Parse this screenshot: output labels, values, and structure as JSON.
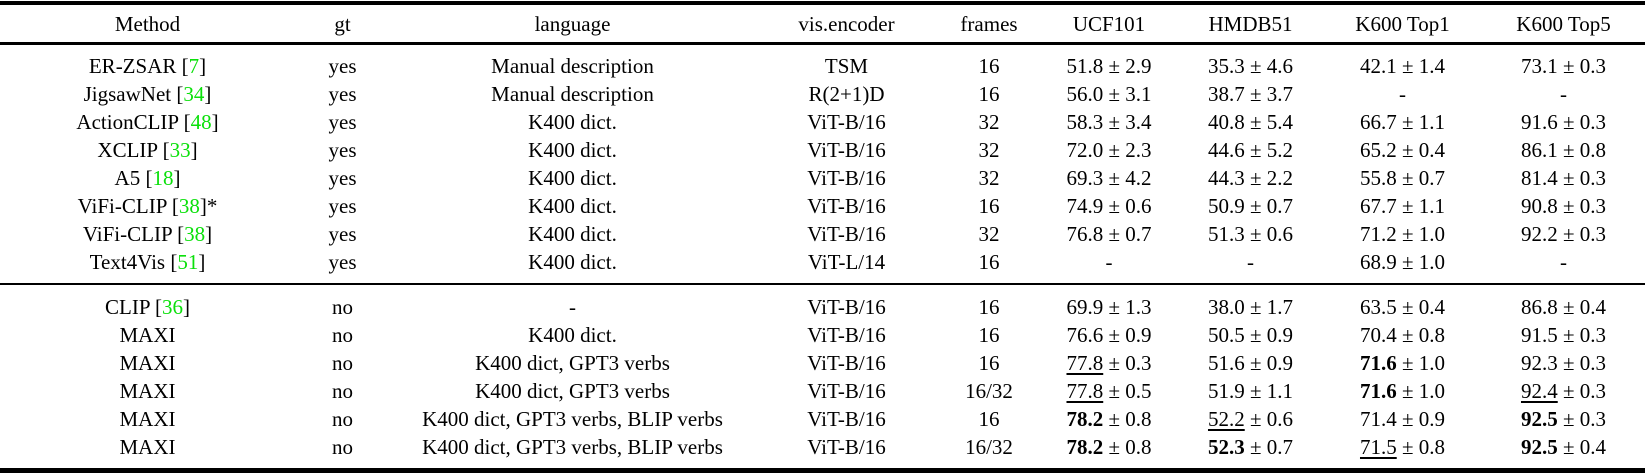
{
  "meta": {
    "citation_color": "#0be00b",
    "text_color": "#000000",
    "plus_minus": "±"
  },
  "table": {
    "headers": [
      "Method",
      "gt",
      "language",
      "vis.encoder",
      "frames",
      "UCF101",
      "HMDB51",
      "K600 Top1",
      "K600 Top5"
    ],
    "groups": [
      {
        "rows": [
          {
            "method": {
              "name": "ER-ZSAR",
              "cite": "7",
              "suffix": ""
            },
            "gt": "yes",
            "language": "Manual description",
            "encoder": "TSM",
            "frames": "16",
            "results": [
              {
                "v": "51.8",
                "pm": "2.9",
                "s": "n"
              },
              {
                "v": "35.3",
                "pm": "4.6",
                "s": "n"
              },
              {
                "v": "42.1",
                "pm": "1.4",
                "s": "n"
              },
              {
                "v": "73.1",
                "pm": "0.3",
                "s": "n"
              }
            ]
          },
          {
            "method": {
              "name": "JigsawNet",
              "cite": "34",
              "suffix": ""
            },
            "gt": "yes",
            "language": "Manual description",
            "encoder": "R(2+1)D",
            "frames": "16",
            "results": [
              {
                "v": "56.0",
                "pm": "3.1",
                "s": "n"
              },
              {
                "v": "38.7",
                "pm": "3.7",
                "s": "n"
              },
              {
                "v": "-",
                "pm": null,
                "s": "n"
              },
              {
                "v": "-",
                "pm": null,
                "s": "n"
              }
            ]
          },
          {
            "method": {
              "name": "ActionCLIP",
              "cite": "48",
              "suffix": ""
            },
            "gt": "yes",
            "language": "K400 dict.",
            "encoder": "ViT-B/16",
            "frames": "32",
            "results": [
              {
                "v": "58.3",
                "pm": "3.4",
                "s": "n"
              },
              {
                "v": "40.8",
                "pm": "5.4",
                "s": "n"
              },
              {
                "v": "66.7",
                "pm": "1.1",
                "s": "n"
              },
              {
                "v": "91.6",
                "pm": "0.3",
                "s": "n"
              }
            ]
          },
          {
            "method": {
              "name": "XCLIP",
              "cite": "33",
              "suffix": ""
            },
            "gt": "yes",
            "language": "K400 dict.",
            "encoder": "ViT-B/16",
            "frames": "32",
            "results": [
              {
                "v": "72.0",
                "pm": "2.3",
                "s": "n"
              },
              {
                "v": "44.6",
                "pm": "5.2",
                "s": "n"
              },
              {
                "v": "65.2",
                "pm": "0.4",
                "s": "n"
              },
              {
                "v": "86.1",
                "pm": "0.8",
                "s": "n"
              }
            ]
          },
          {
            "method": {
              "name": "A5",
              "cite": "18",
              "suffix": ""
            },
            "gt": "yes",
            "language": "K400 dict.",
            "encoder": "ViT-B/16",
            "frames": "32",
            "results": [
              {
                "v": "69.3",
                "pm": "4.2",
                "s": "n"
              },
              {
                "v": "44.3",
                "pm": "2.2",
                "s": "n"
              },
              {
                "v": "55.8",
                "pm": "0.7",
                "s": "n"
              },
              {
                "v": "81.4",
                "pm": "0.3",
                "s": "n"
              }
            ]
          },
          {
            "method": {
              "name": "ViFi-CLIP",
              "cite": "38",
              "suffix": "*"
            },
            "gt": "yes",
            "language": "K400 dict.",
            "encoder": "ViT-B/16",
            "frames": "16",
            "results": [
              {
                "v": "74.9",
                "pm": "0.6",
                "s": "n"
              },
              {
                "v": "50.9",
                "pm": "0.7",
                "s": "n"
              },
              {
                "v": "67.7",
                "pm": "1.1",
                "s": "n"
              },
              {
                "v": "90.8",
                "pm": "0.3",
                "s": "n"
              }
            ]
          },
          {
            "method": {
              "name": "ViFi-CLIP",
              "cite": "38",
              "suffix": ""
            },
            "gt": "yes",
            "language": "K400 dict.",
            "encoder": "ViT-B/16",
            "frames": "32",
            "results": [
              {
                "v": "76.8",
                "pm": "0.7",
                "s": "n"
              },
              {
                "v": "51.3",
                "pm": "0.6",
                "s": "n"
              },
              {
                "v": "71.2",
                "pm": "1.0",
                "s": "n"
              },
              {
                "v": "92.2",
                "pm": "0.3",
                "s": "n"
              }
            ]
          },
          {
            "method": {
              "name": "Text4Vis",
              "cite": "51",
              "suffix": ""
            },
            "gt": "yes",
            "language": "K400 dict.",
            "encoder": "ViT-L/14",
            "frames": "16",
            "results": [
              {
                "v": "-",
                "pm": null,
                "s": "n"
              },
              {
                "v": "-",
                "pm": null,
                "s": "n"
              },
              {
                "v": "68.9",
                "pm": "1.0",
                "s": "n"
              },
              {
                "v": "-",
                "pm": null,
                "s": "n"
              }
            ]
          }
        ]
      },
      {
        "rows": [
          {
            "method": {
              "name": "CLIP",
              "cite": "36",
              "suffix": ""
            },
            "gt": "no",
            "language": "-",
            "encoder": "ViT-B/16",
            "frames": "16",
            "results": [
              {
                "v": "69.9",
                "pm": "1.3",
                "s": "n"
              },
              {
                "v": "38.0",
                "pm": "1.7",
                "s": "n"
              },
              {
                "v": "63.5",
                "pm": "0.4",
                "s": "n"
              },
              {
                "v": "86.8",
                "pm": "0.4",
                "s": "n"
              }
            ]
          },
          {
            "method": {
              "name": "MAXI",
              "cite": null,
              "suffix": ""
            },
            "gt": "no",
            "language": "K400 dict.",
            "encoder": "ViT-B/16",
            "frames": "16",
            "results": [
              {
                "v": "76.6",
                "pm": "0.9",
                "s": "n"
              },
              {
                "v": "50.5",
                "pm": "0.9",
                "s": "n"
              },
              {
                "v": "70.4",
                "pm": "0.8",
                "s": "n"
              },
              {
                "v": "91.5",
                "pm": "0.3",
                "s": "n"
              }
            ]
          },
          {
            "method": {
              "name": "MAXI",
              "cite": null,
              "suffix": ""
            },
            "gt": "no",
            "language": "K400 dict, GPT3 verbs",
            "encoder": "ViT-B/16",
            "frames": "16",
            "results": [
              {
                "v": "77.8",
                "pm": "0.3",
                "s": "u"
              },
              {
                "v": "51.6",
                "pm": "0.9",
                "s": "n"
              },
              {
                "v": "71.6",
                "pm": "1.0",
                "s": "b"
              },
              {
                "v": "92.3",
                "pm": "0.3",
                "s": "n"
              }
            ]
          },
          {
            "method": {
              "name": "MAXI",
              "cite": null,
              "suffix": ""
            },
            "gt": "no",
            "language": "K400 dict, GPT3 verbs",
            "encoder": "ViT-B/16",
            "frames": "16/32",
            "results": [
              {
                "v": "77.8",
                "pm": "0.5",
                "s": "u"
              },
              {
                "v": "51.9",
                "pm": "1.1",
                "s": "n"
              },
              {
                "v": "71.6",
                "pm": "1.0",
                "s": "b"
              },
              {
                "v": "92.4",
                "pm": "0.3",
                "s": "u"
              }
            ]
          },
          {
            "method": {
              "name": "MAXI",
              "cite": null,
              "suffix": ""
            },
            "gt": "no",
            "language": "K400 dict, GPT3 verbs, BLIP verbs",
            "encoder": "ViT-B/16",
            "frames": "16",
            "results": [
              {
                "v": "78.2",
                "pm": "0.8",
                "s": "b"
              },
              {
                "v": "52.2",
                "pm": "0.6",
                "s": "u"
              },
              {
                "v": "71.4",
                "pm": "0.9",
                "s": "n"
              },
              {
                "v": "92.5",
                "pm": "0.3",
                "s": "b"
              }
            ]
          },
          {
            "method": {
              "name": "MAXI",
              "cite": null,
              "suffix": ""
            },
            "gt": "no",
            "language": "K400 dict, GPT3 verbs, BLIP verbs",
            "encoder": "ViT-B/16",
            "frames": "16/32",
            "results": [
              {
                "v": "78.2",
                "pm": "0.8",
                "s": "b"
              },
              {
                "v": "52.3",
                "pm": "0.7",
                "s": "b"
              },
              {
                "v": "71.5",
                "pm": "0.8",
                "s": "u"
              },
              {
                "v": "92.5",
                "pm": "0.4",
                "s": "b"
              }
            ]
          }
        ]
      }
    ]
  }
}
